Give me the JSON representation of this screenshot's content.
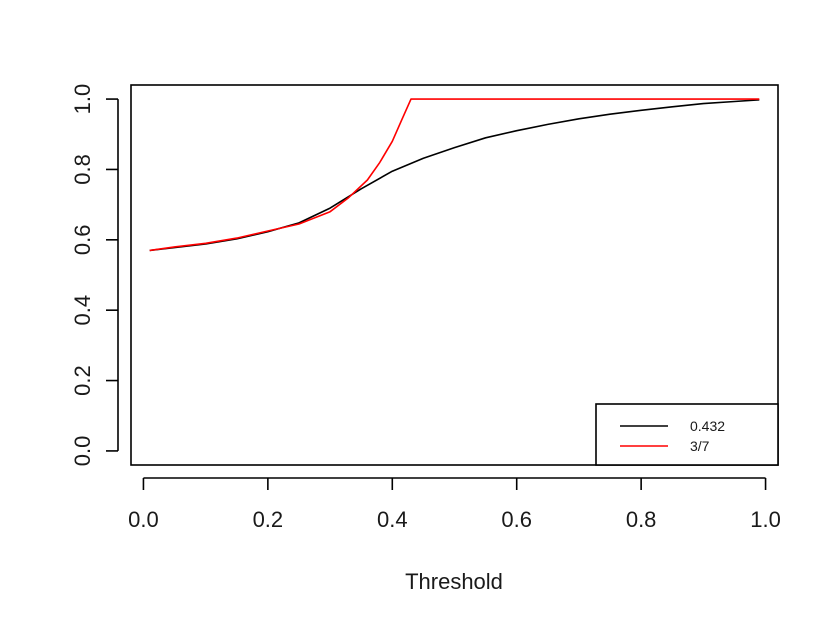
{
  "chart_data": {
    "type": "line",
    "title": "",
    "xlabel": "Threshold",
    "ylabel": "",
    "xlim": [
      -0.02,
      1.02
    ],
    "ylim": [
      -0.04,
      1.04
    ],
    "x_ticks": [
      0.0,
      0.2,
      0.4,
      0.6,
      0.8,
      1.0
    ],
    "x_tick_labels": [
      "0.0",
      "0.2",
      "0.4",
      "0.6",
      "0.8",
      "1.0"
    ],
    "y_ticks": [
      0.0,
      0.2,
      0.4,
      0.6,
      0.8,
      1.0
    ],
    "y_tick_labels": [
      "0.0",
      "0.2",
      "0.4",
      "0.6",
      "0.8",
      "1.0"
    ],
    "grid": false,
    "legend_position": "bottom-right",
    "series": [
      {
        "name": "0.432",
        "color": "#000000",
        "x": [
          0.01,
          0.05,
          0.1,
          0.15,
          0.2,
          0.25,
          0.3,
          0.35,
          0.4,
          0.45,
          0.5,
          0.55,
          0.6,
          0.65,
          0.7,
          0.75,
          0.8,
          0.85,
          0.9,
          0.95,
          0.99
        ],
        "y": [
          0.57,
          0.578,
          0.588,
          0.603,
          0.623,
          0.648,
          0.69,
          0.745,
          0.795,
          0.832,
          0.862,
          0.89,
          0.91,
          0.928,
          0.944,
          0.957,
          0.968,
          0.978,
          0.987,
          0.993,
          0.998
        ]
      },
      {
        "name": "3/7",
        "color": "#ff0000",
        "x": [
          0.01,
          0.05,
          0.1,
          0.15,
          0.2,
          0.25,
          0.3,
          0.33,
          0.36,
          0.38,
          0.4,
          0.415,
          0.43,
          0.5,
          0.6,
          0.7,
          0.8,
          0.9,
          0.99
        ],
        "y": [
          0.57,
          0.58,
          0.59,
          0.605,
          0.625,
          0.645,
          0.68,
          0.72,
          0.77,
          0.82,
          0.88,
          0.94,
          1.0,
          1.0,
          1.0,
          1.0,
          1.0,
          1.0,
          1.0
        ]
      }
    ]
  }
}
